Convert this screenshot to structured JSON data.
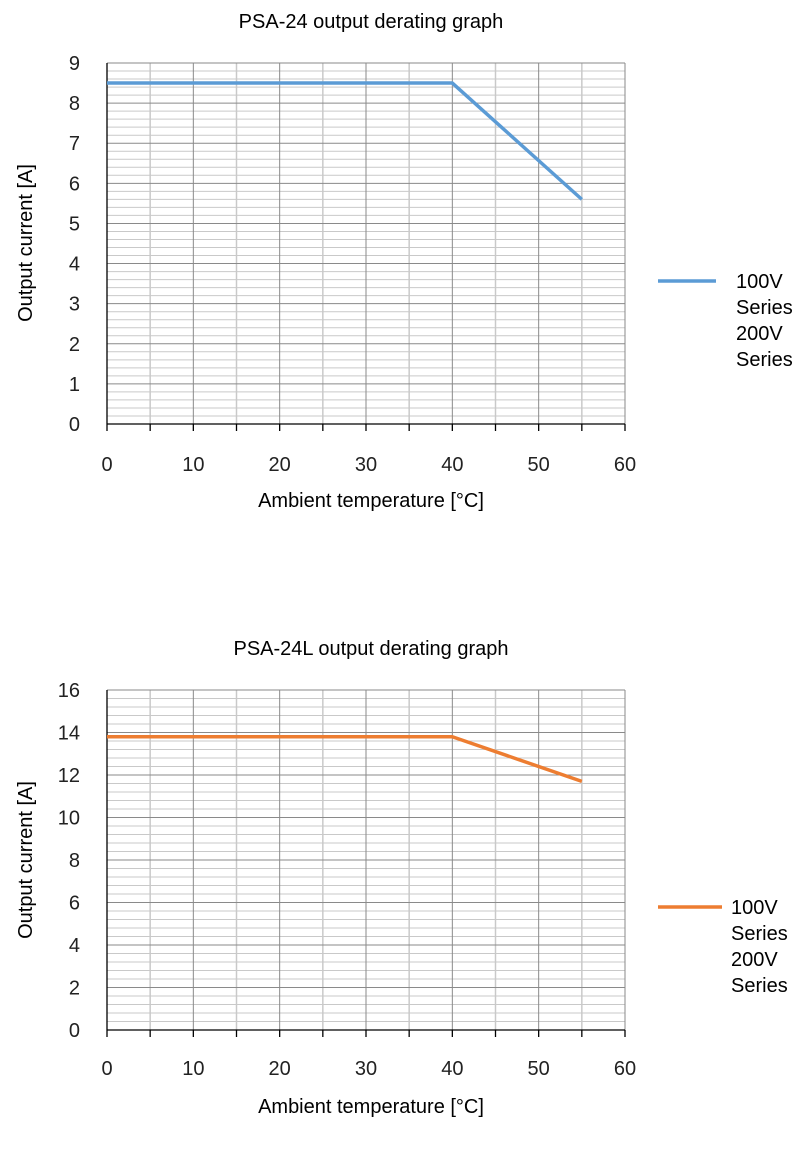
{
  "chart_data": [
    {
      "type": "line",
      "title": "PSA-24 output derating graph",
      "xlabel": "Ambient temperature [°C]",
      "ylabel": "Output current [A]",
      "xlim": [
        0,
        60
      ],
      "ylim": [
        0,
        9
      ],
      "x_ticks": [
        0,
        10,
        20,
        30,
        40,
        50,
        60
      ],
      "y_ticks": [
        0,
        1,
        2,
        3,
        4,
        5,
        6,
        7,
        8,
        9
      ],
      "grid": true,
      "legend_position": "right",
      "series": [
        {
          "name": "100V Series 200V Series",
          "legend_lines": [
            "100V",
            "Series",
            "200V",
            "Series"
          ],
          "color": "#5B9BD5",
          "x": [
            0,
            40,
            55
          ],
          "y": [
            8.5,
            8.5,
            5.6
          ]
        }
      ]
    },
    {
      "type": "line",
      "title": "PSA-24L output derating graph",
      "xlabel": "Ambient temperature [°C]",
      "ylabel": "Output current [A]",
      "xlim": [
        0,
        60
      ],
      "ylim": [
        0,
        16
      ],
      "x_ticks": [
        0,
        10,
        20,
        30,
        40,
        50,
        60
      ],
      "y_ticks": [
        0,
        2,
        4,
        6,
        8,
        10,
        12,
        14,
        16
      ],
      "grid": true,
      "legend_position": "right",
      "series": [
        {
          "name": "100V Series 200V Series",
          "legend_lines": [
            "100V",
            "Series",
            "200V",
            "Series"
          ],
          "color": "#ED7D31",
          "x": [
            0,
            40,
            55
          ],
          "y": [
            13.8,
            13.8,
            11.7
          ]
        }
      ]
    }
  ]
}
